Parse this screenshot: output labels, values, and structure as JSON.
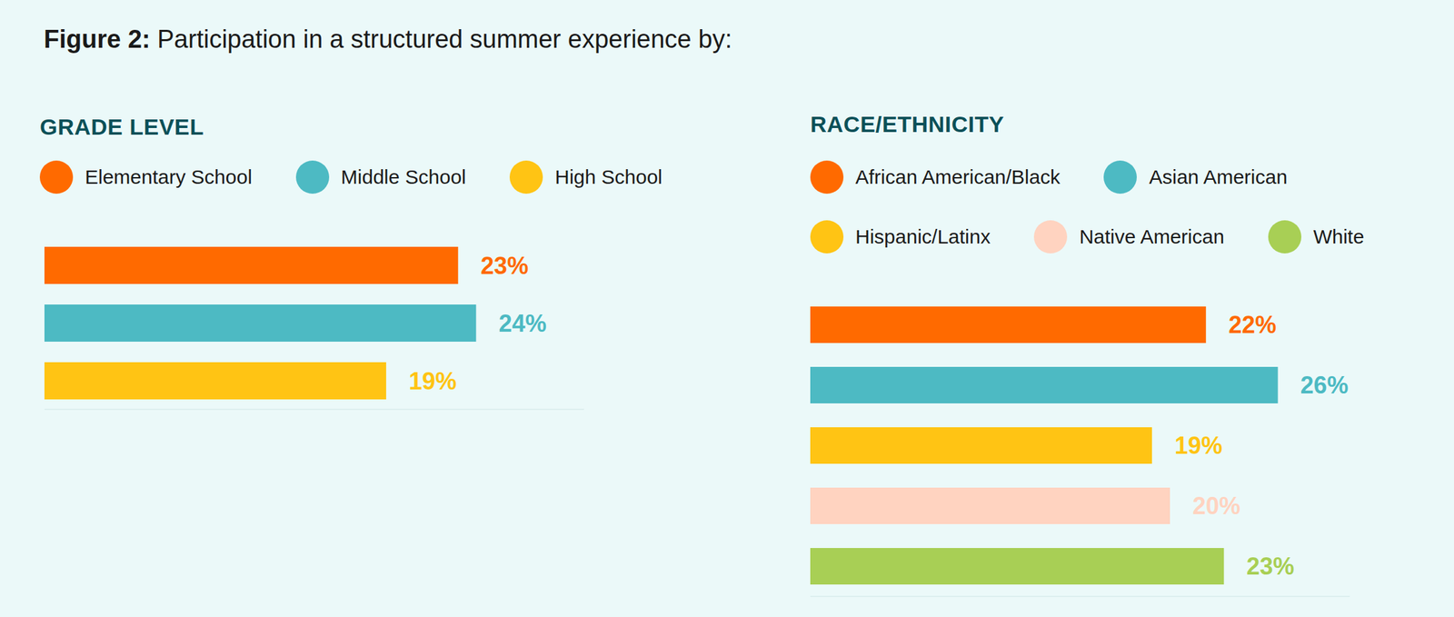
{
  "title": "Figure 2: Participation in a structured summer experience by:",
  "chart_data": [
    {
      "type": "bar",
      "title": "GRADE LEVEL",
      "orientation": "horizontal",
      "categories": [
        "Elementary School",
        "Middle School",
        "High School"
      ],
      "values": [
        23,
        24,
        19
      ],
      "value_labels": [
        "23%",
        "24%",
        "19%"
      ],
      "colors": [
        "#ff6a00",
        "#4dbac3",
        "#ffc414"
      ],
      "xlim": [
        0,
        30
      ],
      "data_labels": true,
      "tick_labels": false,
      "legend": "top"
    },
    {
      "type": "bar",
      "title": "RACE/ETHNICITY",
      "orientation": "horizontal",
      "categories": [
        "African American/Black",
        "Asian American",
        "Hispanic/Latinx",
        "Native American",
        "White"
      ],
      "values": [
        22,
        26,
        19,
        20,
        23
      ],
      "value_labels": [
        "22%",
        "26%",
        "19%",
        "20%",
        "23%"
      ],
      "colors": [
        "#ff6a00",
        "#4dbac3",
        "#ffc414",
        "#ffd3c0",
        "#a8cf55"
      ],
      "xlim": [
        0,
        30
      ],
      "data_labels": true,
      "tick_labels": false,
      "legend": "top"
    }
  ]
}
